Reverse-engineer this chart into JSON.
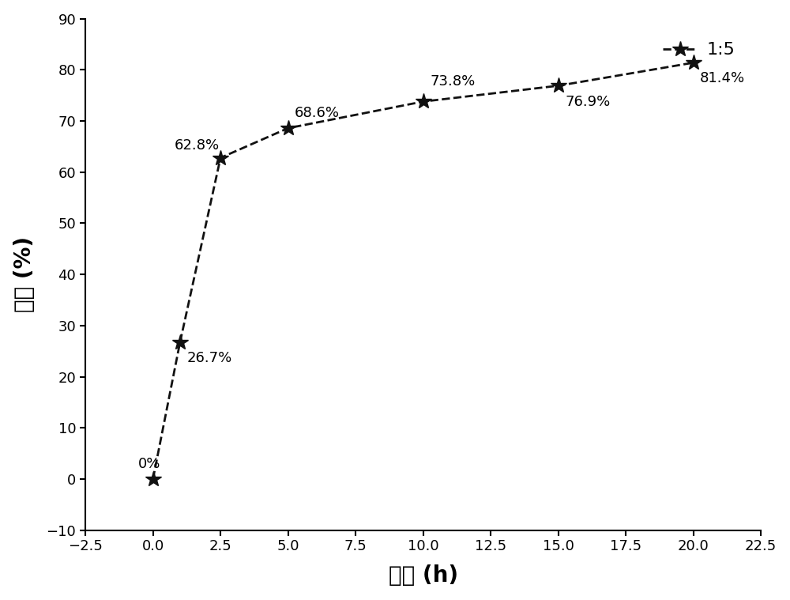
{
  "x": [
    0,
    1,
    2.5,
    5,
    10,
    15,
    20
  ],
  "y": [
    0,
    26.7,
    62.8,
    68.6,
    73.8,
    76.9,
    81.4
  ],
  "labels": [
    "0%",
    "26.7%",
    "62.8%",
    "68.6%",
    "73.8%",
    "76.9%",
    "81.4%"
  ],
  "label_offsets_x": [
    -0.55,
    0.25,
    -1.7,
    0.25,
    0.25,
    0.25,
    0.25
  ],
  "label_offsets_y": [
    1.5,
    -4.5,
    1.0,
    1.5,
    2.5,
    -4.5,
    -4.5
  ],
  "legend_label": "1:5",
  "xlim": [
    -2.5,
    22.5
  ],
  "ylim": [
    -10,
    90
  ],
  "xticks": [
    -2.5,
    0.0,
    2.5,
    5.0,
    7.5,
    10.0,
    12.5,
    15.0,
    17.5,
    20.0,
    22.5
  ],
  "yticks": [
    -10,
    0,
    10,
    20,
    30,
    40,
    50,
    60,
    70,
    80,
    90
  ],
  "xlabel": "时间 (h)",
  "ylabel": "产率 (%)",
  "marker": "*",
  "marker_size": 15,
  "line_color": "#111111",
  "line_style": "--",
  "line_width": 2.0,
  "annotation_fontsize": 13,
  "axis_label_fontsize": 20,
  "tick_fontsize": 13,
  "legend_fontsize": 16
}
